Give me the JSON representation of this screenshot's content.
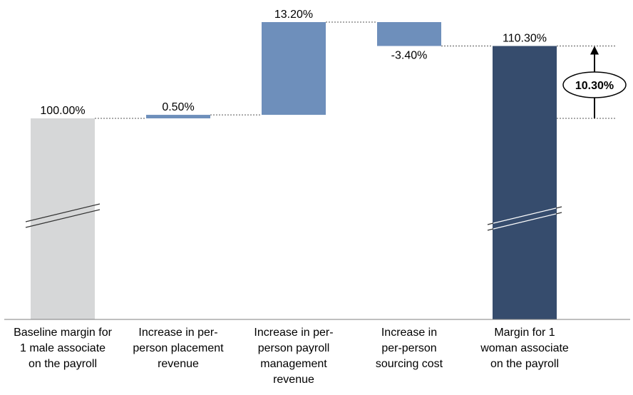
{
  "chart_data": {
    "type": "bar",
    "subtype": "waterfall",
    "categories": [
      [
        "Baseline margin for",
        "1 male associate",
        "on the payroll"
      ],
      [
        "Increase in per-",
        "person placement",
        "revenue"
      ],
      [
        "Increase in per-",
        "person payroll",
        "management",
        "revenue"
      ],
      [
        "Increase in",
        "per-person",
        "sourcing cost"
      ],
      [
        "Margin for 1",
        "woman associate",
        "on the payroll"
      ]
    ],
    "values": [
      100.0,
      0.5,
      13.2,
      -3.4,
      110.3
    ],
    "value_labels": [
      "100.00%",
      "0.50%",
      "13.20%",
      "-3.40%",
      "110.30%"
    ],
    "bar_kinds": [
      "total",
      "delta",
      "delta",
      "delta",
      "total"
    ],
    "axis_break": true,
    "difference_callout": {
      "label": "10.30%",
      "from": 100.0,
      "to": 110.3
    },
    "colors": {
      "baseline": "#d6d7d8",
      "delta": "#6e8fbb",
      "final": "#364c6d",
      "connector": "#555555"
    },
    "grid": false,
    "legend": "none"
  }
}
